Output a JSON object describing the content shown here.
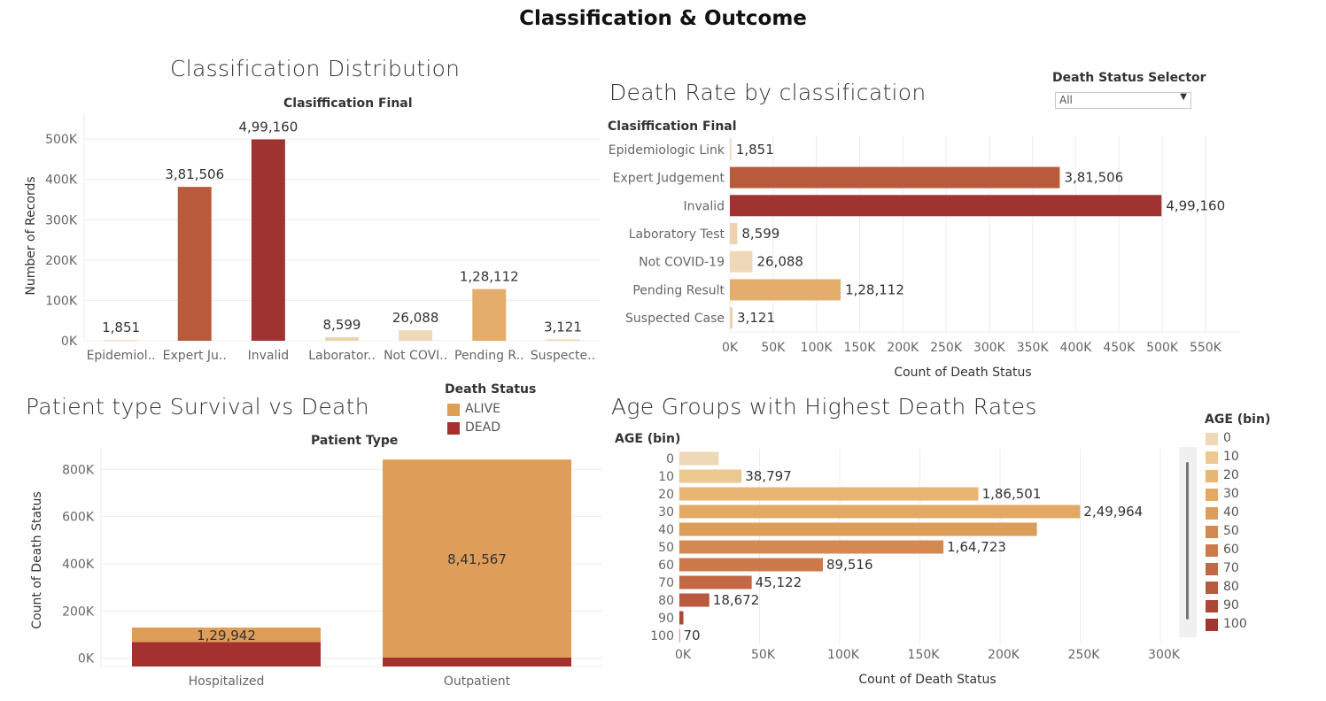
{
  "dashboard_title": "Classification & Outcome",
  "selector": {
    "title": "Death Status Selector",
    "value": "All"
  },
  "colors": {
    "ep": "#f1dcbd",
    "expert": "#b85a3b",
    "invalid": "#9e3331",
    "lab": "#edd2ad",
    "notcovid": "#efd8b7",
    "pending": "#e4ad6b",
    "suspected": "#ecd3b0",
    "alive": "#df9d5a",
    "dead": "#a4312f",
    "grid": "#ececec"
  },
  "legend_death": {
    "title": "Death Status",
    "items": [
      {
        "label": "ALIVE",
        "color": "#df9d5a"
      },
      {
        "label": "DEAD",
        "color": "#a4312f"
      }
    ]
  },
  "legend_age": {
    "title": "AGE (bin)",
    "items": [
      {
        "label": "0",
        "color": "#efd8b7"
      },
      {
        "label": "10",
        "color": "#ecc98f"
      },
      {
        "label": "20",
        "color": "#e8b672"
      },
      {
        "label": "30",
        "color": "#e3a864"
      },
      {
        "label": "40",
        "color": "#dc9c5a"
      },
      {
        "label": "50",
        "color": "#d48952"
      },
      {
        "label": "60",
        "color": "#cc7a4b"
      },
      {
        "label": "70",
        "color": "#c26845"
      },
      {
        "label": "80",
        "color": "#b95a3e"
      },
      {
        "label": "90",
        "color": "#ad4838"
      },
      {
        "label": "100",
        "color": "#a23432"
      }
    ]
  },
  "chart_data": [
    {
      "id": "classification_distribution",
      "type": "bar",
      "title": "Classification Distribution",
      "header": "Clasiffication Final",
      "ylabel": "Number of Records",
      "xlabel": "",
      "categories": [
        "Epidemiol..",
        "Expert Ju..",
        "Invalid",
        "Laborator..",
        "Not COVI..",
        "Pending R..",
        "Suspecte.."
      ],
      "values": [
        1851,
        381506,
        499160,
        8599,
        26088,
        128112,
        3121
      ],
      "value_labels": [
        "1,851",
        "3,81,506",
        "4,99,160",
        "8,599",
        "26,088",
        "1,28,112",
        "3,121"
      ],
      "colors": [
        "#f1dcbd",
        "#b85a3b",
        "#9e3331",
        "#edd2ad",
        "#efd8b7",
        "#e4ad6b",
        "#ecd3b0"
      ],
      "ylim": [
        0,
        520000
      ],
      "yticks": [
        0,
        100000,
        200000,
        300000,
        400000,
        500000
      ],
      "ytick_labels": [
        "0K",
        "100K",
        "200K",
        "300K",
        "400K",
        "500K"
      ],
      "grid": true
    },
    {
      "id": "death_rate_by_classification",
      "type": "bar",
      "orientation": "horizontal",
      "title": "Death Rate by classification",
      "header": "Clasiffication Final",
      "xlabel": "Count of Death Status",
      "categories": [
        "Epidemiologic Link",
        "Expert Judgement",
        "Invalid",
        "Laboratory Test",
        "Not COVID-19",
        "Pending Result",
        "Suspected Case"
      ],
      "values": [
        1851,
        381506,
        499160,
        8599,
        26088,
        128112,
        3121
      ],
      "value_labels": [
        "1,851",
        "3,81,506",
        "4,99,160",
        "8,599",
        "26,088",
        "1,28,112",
        "3,121"
      ],
      "colors": [
        "#f1dcbd",
        "#b85a3b",
        "#9e3331",
        "#edd2ad",
        "#efd8b7",
        "#e4ad6b",
        "#ecd3b0"
      ],
      "xlim": [
        0,
        590000
      ],
      "xticks": [
        0,
        50000,
        100000,
        150000,
        200000,
        250000,
        300000,
        350000,
        400000,
        450000,
        500000,
        550000
      ],
      "xtick_labels": [
        "0K",
        "50K",
        "100K",
        "150K",
        "200K",
        "250K",
        "300K",
        "350K",
        "400K",
        "450K",
        "500K",
        "550K"
      ],
      "grid": true
    },
    {
      "id": "patient_type_survival",
      "type": "bar",
      "stacked": true,
      "title": "Patient type Survival vs Death",
      "header": "Patient Type",
      "ylabel": "Count of Death Status",
      "categories": [
        "Hospitalized",
        "Outpatient"
      ],
      "series": [
        {
          "name": "DEAD",
          "values": [
            69000,
            2500
          ],
          "color": "#a4312f"
        },
        {
          "name": "ALIVE",
          "values": [
            129942,
            841567
          ],
          "color": "#df9d5a"
        }
      ],
      "total_labels": [
        "1,29,942",
        "8,41,567"
      ],
      "ylim": [
        -35000,
        865000
      ],
      "yticks": [
        0,
        200000,
        400000,
        600000,
        800000
      ],
      "ytick_labels": [
        "0K",
        "200K",
        "400K",
        "600K",
        "800K"
      ],
      "grid": true
    },
    {
      "id": "age_groups_death",
      "type": "bar",
      "orientation": "horizontal",
      "title": "Age Groups with Highest Death Rates",
      "header": "AGE (bin)",
      "xlabel": "Count of Death Status",
      "categories": [
        "0",
        "10",
        "20",
        "30",
        "40",
        "50",
        "60",
        "70",
        "80",
        "90",
        "100"
      ],
      "values": [
        24500,
        38797,
        186501,
        249964,
        223000,
        164723,
        89516,
        45122,
        18672,
        2500,
        70
      ],
      "value_labels": [
        "",
        "38,797",
        "1,86,501",
        "2,49,964",
        "",
        "1,64,723",
        "89,516",
        "45,122",
        "18,672",
        "",
        "70"
      ],
      "colors": [
        "#efd8b7",
        "#ecc98f",
        "#e8b672",
        "#e3a864",
        "#dc9c5a",
        "#d48952",
        "#cc7a4b",
        "#c26845",
        "#b95a3e",
        "#ad4838",
        "#a23432"
      ],
      "xlim": [
        0,
        300000
      ],
      "xticks": [
        0,
        50000,
        100000,
        150000,
        200000,
        250000,
        300000
      ],
      "xtick_labels": [
        "0K",
        "50K",
        "100K",
        "150K",
        "200K",
        "250K",
        "300K"
      ],
      "grid": true
    }
  ]
}
